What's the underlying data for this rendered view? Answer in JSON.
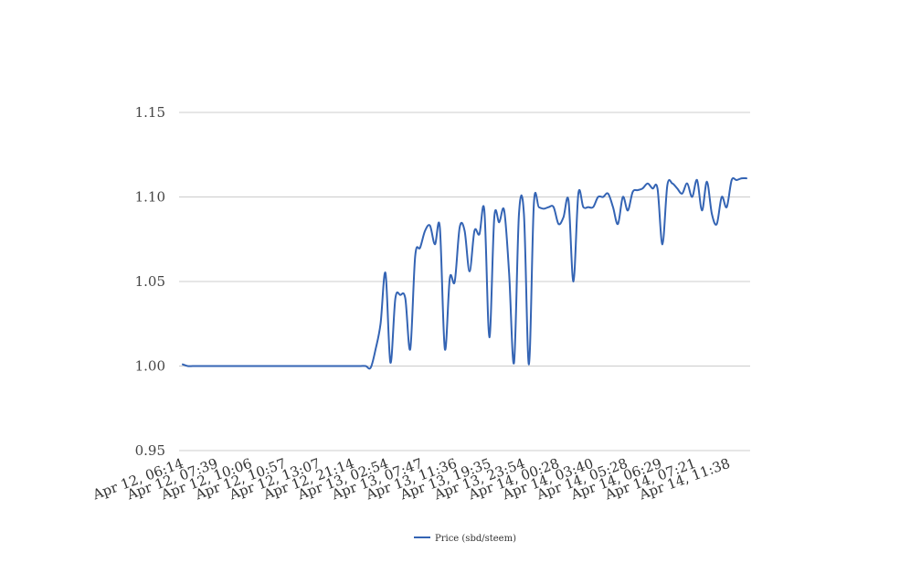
{
  "chart_data": {
    "type": "line",
    "ylim": [
      0.95,
      1.15
    ],
    "yticks": [
      "0.95",
      "1.00",
      "1.05",
      "1.10",
      "1.15"
    ],
    "ytick_values": [
      0.95,
      1.0,
      1.05,
      1.1,
      1.15
    ],
    "xtick_labels": [
      "Apr 12, 06:14",
      "Apr 12, 07:39",
      "Apr 12, 10:06",
      "Apr 12, 10:57",
      "Apr 12, 13:07",
      "Apr 12, 21:14",
      "Apr 13, 02:54",
      "Apr 13, 07:47",
      "Apr 13, 11:36",
      "Apr 13, 19:35",
      "Apr 13, 23:54",
      "Apr 14, 00:28",
      "Apr 14, 03:40",
      "Apr 14, 05:28",
      "Apr 14, 06:29",
      "Apr 14, 07:21",
      "Apr 14, 11:38"
    ],
    "grid": true,
    "legend_position": "bottom",
    "series": [
      {
        "name": "Price (sbd/steem)",
        "color": "#3464b4",
        "values": [
          1.001,
          1.0,
          1.0,
          1.0,
          1.0,
          1.0,
          1.0,
          1.0,
          1.0,
          1.0,
          1.0,
          1.0,
          1.0,
          1.0,
          1.0,
          1.0,
          1.0,
          1.0,
          1.0,
          1.0,
          1.0,
          1.0,
          1.0,
          1.0,
          1.0,
          1.0,
          1.0,
          1.0,
          1.0,
          1.0,
          1.0,
          1.0,
          1.0,
          1.0,
          1.0,
          1.0,
          1.0,
          1.0,
          0.999,
          1.01,
          1.025,
          1.055,
          1.002,
          1.04,
          1.042,
          1.04,
          1.01,
          1.065,
          1.07,
          1.08,
          1.083,
          1.072,
          1.082,
          1.01,
          1.052,
          1.05,
          1.082,
          1.08,
          1.056,
          1.08,
          1.078,
          1.092,
          1.017,
          1.088,
          1.085,
          1.092,
          1.055,
          1.002,
          1.09,
          1.09,
          1.001,
          1.096,
          1.094,
          1.093,
          1.094,
          1.094,
          1.084,
          1.088,
          1.098,
          1.05,
          1.102,
          1.094,
          1.094,
          1.094,
          1.1,
          1.1,
          1.102,
          1.094,
          1.084,
          1.1,
          1.092,
          1.103,
          1.104,
          1.105,
          1.108,
          1.105,
          1.105,
          1.072,
          1.107,
          1.108,
          1.105,
          1.102,
          1.108,
          1.1,
          1.11,
          1.092,
          1.109,
          1.09,
          1.084,
          1.1,
          1.094,
          1.11,
          1.11,
          1.111,
          1.111
        ]
      }
    ]
  }
}
